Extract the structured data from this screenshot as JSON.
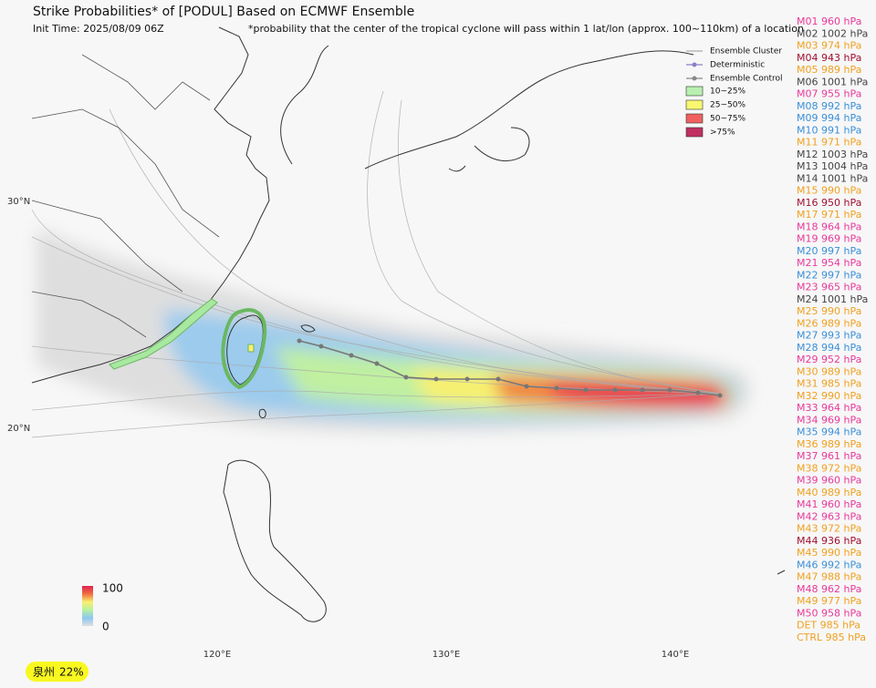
{
  "header": {
    "title": "Strike Probabilities* of [PODUL] Based on ECMWF Ensemble",
    "init_time": "Init Time: 2025/08/09 06Z",
    "footnote": "*probability that the center of the tropical cyclone will pass within 1 lat/lon (approx. 100~110km) of a location"
  },
  "legend": {
    "lines": [
      {
        "label": "Ensemble Cluster",
        "color": "#aaaaaa"
      },
      {
        "label": "Deterministic",
        "color": "#8a7fc8"
      },
      {
        "label": "Ensemble Control",
        "color": "#888888"
      }
    ],
    "boxes": [
      {
        "label": "10~25%",
        "color": "#b8f0b0"
      },
      {
        "label": "25~50%",
        "color": "#f8f870"
      },
      {
        "label": "50~75%",
        "color": "#f06060"
      },
      {
        "label": ">75%",
        "color": "#c03060"
      }
    ]
  },
  "axes": {
    "lat_labels": [
      "30°N",
      "20°N"
    ],
    "lon_labels": [
      "120°E",
      "130°E",
      "140°E"
    ]
  },
  "colorbar": {
    "max_label": 100,
    "min_label": 0
  },
  "members": [
    {
      "label": "M01 960 hPa",
      "color": "#e8399a"
    },
    {
      "label": "M02 1002 hPa",
      "color": "#444444"
    },
    {
      "label": "M03 974 hPa",
      "color": "#f0a020"
    },
    {
      "label": "M04 943 hPa",
      "color": "#a01030"
    },
    {
      "label": "M05 989 hPa",
      "color": "#f0a020"
    },
    {
      "label": "M06 1001 hPa",
      "color": "#444444"
    },
    {
      "label": "M07 955 hPa",
      "color": "#e8399a"
    },
    {
      "label": "M08 992 hPa",
      "color": "#3a8fd8"
    },
    {
      "label": "M09 994 hPa",
      "color": "#3a8fd8"
    },
    {
      "label": "M10 991 hPa",
      "color": "#3a8fd8"
    },
    {
      "label": "M11 971 hPa",
      "color": "#f0a020"
    },
    {
      "label": "M12 1003 hPa",
      "color": "#444444"
    },
    {
      "label": "M13 1004 hPa",
      "color": "#444444"
    },
    {
      "label": "M14 1001 hPa",
      "color": "#444444"
    },
    {
      "label": "M15 990 hPa",
      "color": "#f0a020"
    },
    {
      "label": "M16 950 hPa",
      "color": "#a01030"
    },
    {
      "label": "M17 971 hPa",
      "color": "#f0a020"
    },
    {
      "label": "M18 964 hPa",
      "color": "#e8399a"
    },
    {
      "label": "M19 969 hPa",
      "color": "#e8399a"
    },
    {
      "label": "M20 997 hPa",
      "color": "#3a8fd8"
    },
    {
      "label": "M21 954 hPa",
      "color": "#e8399a"
    },
    {
      "label": "M22 997 hPa",
      "color": "#3a8fd8"
    },
    {
      "label": "M23 965 hPa",
      "color": "#e8399a"
    },
    {
      "label": "M24 1001 hPa",
      "color": "#444444"
    },
    {
      "label": "M25 990 hPa",
      "color": "#f0a020"
    },
    {
      "label": "M26 989 hPa",
      "color": "#f0a020"
    },
    {
      "label": "M27 993 hPa",
      "color": "#3a8fd8"
    },
    {
      "label": "M28 994 hPa",
      "color": "#3a8fd8"
    },
    {
      "label": "M29 952 hPa",
      "color": "#e8399a"
    },
    {
      "label": "M30 989 hPa",
      "color": "#f0a020"
    },
    {
      "label": "M31 985 hPa",
      "color": "#f0a020"
    },
    {
      "label": "M32 990 hPa",
      "color": "#f0a020"
    },
    {
      "label": "M33 964 hPa",
      "color": "#e8399a"
    },
    {
      "label": "M34 969 hPa",
      "color": "#e8399a"
    },
    {
      "label": "M35 994 hPa",
      "color": "#3a8fd8"
    },
    {
      "label": "M36 989 hPa",
      "color": "#f0a020"
    },
    {
      "label": "M37 961 hPa",
      "color": "#e8399a"
    },
    {
      "label": "M38 972 hPa",
      "color": "#f0a020"
    },
    {
      "label": "M39 960 hPa",
      "color": "#e8399a"
    },
    {
      "label": "M40 989 hPa",
      "color": "#f0a020"
    },
    {
      "label": "M41 960 hPa",
      "color": "#e8399a"
    },
    {
      "label": "M42 963 hPa",
      "color": "#e8399a"
    },
    {
      "label": "M43 972 hPa",
      "color": "#f0a020"
    },
    {
      "label": "M44 936 hPa",
      "color": "#a01030"
    },
    {
      "label": "M45 990 hPa",
      "color": "#f0a020"
    },
    {
      "label": "M46 992 hPa",
      "color": "#3a8fd8"
    },
    {
      "label": "M47 988 hPa",
      "color": "#f0a020"
    },
    {
      "label": "M48 962 hPa",
      "color": "#e8399a"
    },
    {
      "label": "M49 977 hPa",
      "color": "#f0a020"
    },
    {
      "label": "M50 958 hPa",
      "color": "#e8399a"
    },
    {
      "label": "DET 985 hPa",
      "color": "#f0a020"
    },
    {
      "label": "CTRL 985 hPa",
      "color": "#f0a020"
    }
  ],
  "badge": {
    "city": "泉州",
    "probability": "22%"
  }
}
